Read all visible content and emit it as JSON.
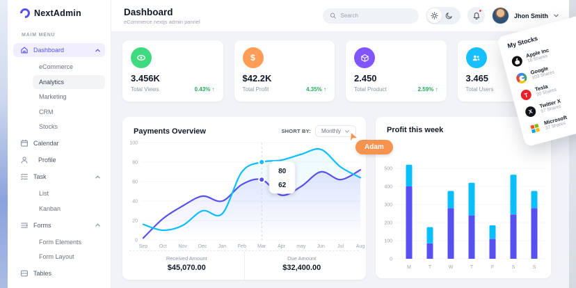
{
  "app": {
    "logo": "NextAdmin"
  },
  "sidebar": {
    "section_label": "MAIM MENU",
    "dashboard_label": "Dashboard",
    "dashboard_children": [
      "eCommerce",
      "Analytics",
      "Marketing",
      "CRM",
      "Stocks"
    ],
    "calendar_label": "Calendar",
    "profile_label": "Profile",
    "task_label": "Task",
    "task_children": [
      "List",
      "Kanban"
    ],
    "forms_label": "Forms",
    "forms_children": [
      "Form Elements",
      "Form Layout"
    ],
    "tables_label": "Tables"
  },
  "header": {
    "title": "Dashboard",
    "subtitle": "eCommerce nextjs admin pannel",
    "search_placeholder": "Search",
    "user_name": "Jhon Smith"
  },
  "stat_cards": [
    {
      "icon": "eye-icon",
      "icon_bg": "#3FD97F",
      "value": "3.456K",
      "label": "Total Views",
      "delta": "0.43%",
      "arrow": "↑"
    },
    {
      "icon": "dollar-icon",
      "icon_bg": "#FF9C55",
      "value": "$42.2K",
      "label": "Total Profit",
      "delta": "4.35%",
      "arrow": "↑"
    },
    {
      "icon": "product-icon",
      "icon_bg": "#8155FF",
      "value": "2.450",
      "label": "Total Product",
      "delta": "2.59%",
      "arrow": "↑"
    },
    {
      "icon": "users-icon",
      "icon_bg": "#18BFFF",
      "value": "3.465",
      "label": "Total Users",
      "delta": "",
      "arrow": ""
    }
  ],
  "payments": {
    "title": "Payments Overview",
    "sort_label": "SHORT BY:",
    "sort_value": "Monthly",
    "received_label": "Received Amount",
    "received_value": "$45,070.00",
    "due_label": "Due Amount",
    "due_value": "$32,400.00"
  },
  "profit": {
    "title": "Profit this week"
  },
  "stocks": {
    "title": "My Stocks",
    "items": [
      {
        "icon": "apple-icon",
        "name": "Apple Inc",
        "shares": "16 Shares"
      },
      {
        "icon": "google-icon",
        "name": "Google",
        "shares": "103 Shares"
      },
      {
        "icon": "tesla-icon",
        "name": "Tesla",
        "shares": "20 Shares"
      },
      {
        "icon": "twitter-x-icon",
        "name": "Twitter X",
        "shares": "57 Shares"
      },
      {
        "icon": "microsoft-icon",
        "name": "Microsoft",
        "shares": "37 Shares"
      }
    ]
  },
  "cursor": {
    "label": "Adam",
    "color": "#F8924F"
  },
  "colors": {
    "accent": "#5750F1",
    "cyan": "#0ABEF9",
    "green": "#22AD5C"
  },
  "chart_data": [
    {
      "type": "line",
      "title": "Payments Overview",
      "x": [
        "Sep",
        "Oct",
        "Nov",
        "Dec",
        "Jan",
        "Feb",
        "Mar",
        "Apr",
        "may",
        "Jun",
        "Jul",
        "Aug"
      ],
      "series": [
        {
          "name": "received",
          "color": "#0ABEF9",
          "values": [
            16,
            10,
            15,
            30,
            27,
            70,
            80,
            82,
            88,
            93,
            75,
            64
          ]
        },
        {
          "name": "due",
          "color": "#5750F1",
          "values": [
            2,
            22,
            35,
            45,
            40,
            57,
            62,
            46,
            55,
            70,
            62,
            72
          ]
        }
      ],
      "ylim": [
        0,
        100
      ],
      "yticks": [
        0,
        20,
        40,
        60,
        80,
        100
      ],
      "grid": true,
      "legend_position": "none",
      "tooltip": {
        "x_index": 6,
        "values": [
          80,
          62
        ]
      }
    },
    {
      "type": "bar",
      "title": "Profit this week",
      "categories": [
        "M",
        "T",
        "W",
        "T",
        "F",
        "S",
        "S"
      ],
      "series": [
        {
          "name": "profit-lower",
          "color": "#5750F1",
          "values": [
            400,
            85,
            280,
            240,
            110,
            245,
            280
          ]
        },
        {
          "name": "profit-upper",
          "color": "#0ABEF9",
          "values": [
            120,
            90,
            95,
            180,
            75,
            220,
            95
          ]
        }
      ],
      "stacked": true,
      "ylim": [
        0,
        550
      ],
      "yticks": [
        0,
        100,
        200,
        300,
        400,
        500
      ],
      "grid": true,
      "legend_position": "none"
    }
  ]
}
